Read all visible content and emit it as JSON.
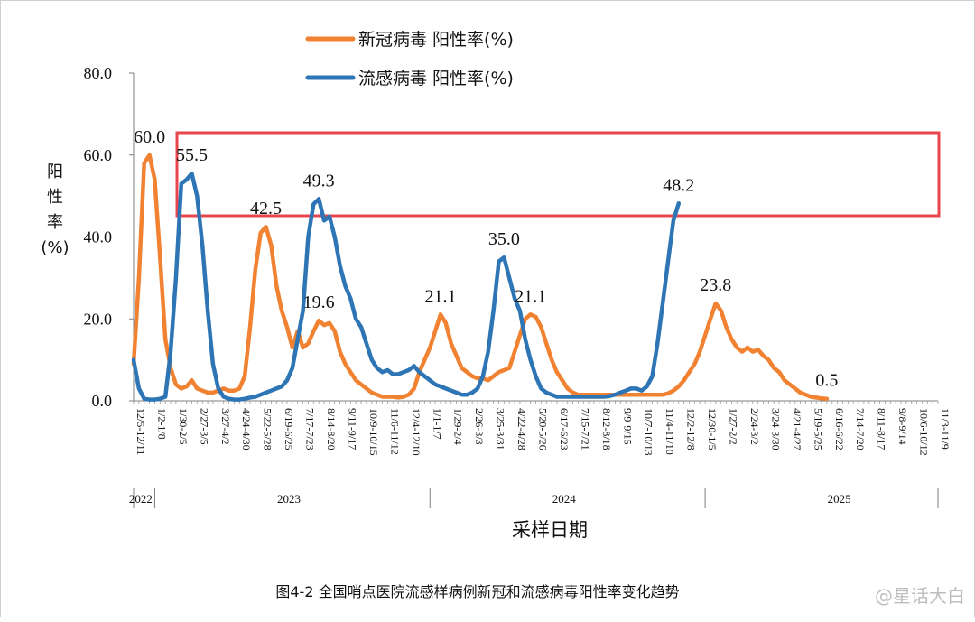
{
  "chart_data": {
    "type": "line",
    "ylabel_chars": [
      "阳",
      "性",
      "率",
      "(%)"
    ],
    "xlabel": "采样日期",
    "caption": "图4-2 全国哨点医院流感样病例新冠和流感病毒阳性率变化趋势",
    "ylim": [
      0,
      80
    ],
    "yticks": [
      {
        "value": 0,
        "label": "0.0"
      },
      {
        "value": 20,
        "label": "20.0"
      },
      {
        "value": 40,
        "label": "40.0"
      },
      {
        "value": 60,
        "label": "60.0"
      },
      {
        "value": 80,
        "label": "80.0"
      }
    ],
    "n_weeks": 152,
    "x_ticks": [
      {
        "i": 0,
        "label": "12/5-12/11"
      },
      {
        "i": 4,
        "label": "1/2-1/8"
      },
      {
        "i": 8,
        "label": "1/30-2/5"
      },
      {
        "i": 12,
        "label": "2/27-3/5"
      },
      {
        "i": 16,
        "label": "3/27-4/2"
      },
      {
        "i": 20,
        "label": "4/24-4/30"
      },
      {
        "i": 24,
        "label": "5/22-5/28"
      },
      {
        "i": 28,
        "label": "6/19-6/25"
      },
      {
        "i": 32,
        "label": "7/17-7/23"
      },
      {
        "i": 36,
        "label": "8/14-8/20"
      },
      {
        "i": 40,
        "label": "9/11-9/17"
      },
      {
        "i": 44,
        "label": "10/9-10/15"
      },
      {
        "i": 48,
        "label": "11/6-11/12"
      },
      {
        "i": 52,
        "label": "12/4-12/10"
      },
      {
        "i": 56,
        "label": "1/1-1/7"
      },
      {
        "i": 60,
        "label": "1/29-2/4"
      },
      {
        "i": 64,
        "label": "2/26-3/3"
      },
      {
        "i": 68,
        "label": "3/25-3/31"
      },
      {
        "i": 72,
        "label": "4/22-4/28"
      },
      {
        "i": 76,
        "label": "5/20-5/26"
      },
      {
        "i": 80,
        "label": "6/17-6/23"
      },
      {
        "i": 84,
        "label": "7/15-7/21"
      },
      {
        "i": 88,
        "label": "8/12-8/18"
      },
      {
        "i": 92,
        "label": "9/9-9/15"
      },
      {
        "i": 96,
        "label": "10/7-10/13"
      },
      {
        "i": 100,
        "label": "11/4-11/10"
      },
      {
        "i": 104,
        "label": "12/2-12/8"
      },
      {
        "i": 108,
        "label": "12/30-1/5"
      },
      {
        "i": 112,
        "label": "1/27-2/2"
      },
      {
        "i": 116,
        "label": "2/24-3/2"
      },
      {
        "i": 120,
        "label": "3/24-3/30"
      },
      {
        "i": 124,
        "label": "4/21-4/27"
      },
      {
        "i": 128,
        "label": "5/19-5/25"
      },
      {
        "i": 132,
        "label": "6/16-6/22"
      },
      {
        "i": 136,
        "label": "7/14-7/20"
      },
      {
        "i": 140,
        "label": "8/11-8/17"
      },
      {
        "i": 144,
        "label": "9/8-9/14"
      },
      {
        "i": 148,
        "label": "10/6-10/12"
      },
      {
        "i": 152,
        "label": "11/3-11/9"
      }
    ],
    "years": [
      {
        "label": "2022",
        "i_center": 1
      },
      {
        "label": "2023",
        "i_center": 29
      },
      {
        "label": "2024",
        "i_center": 81
      },
      {
        "label": "2025",
        "i_center": 133
      }
    ],
    "year_dividers": [
      4,
      56,
      108
    ],
    "series": [
      {
        "name": "新冠病毒 阳性率(%)",
        "color": "#F08232",
        "values": [
          [
            0,
            9
          ],
          [
            1,
            30
          ],
          [
            2,
            58
          ],
          [
            3,
            60
          ],
          [
            4,
            54
          ],
          [
            5,
            35
          ],
          [
            6,
            15
          ],
          [
            7,
            8
          ],
          [
            8,
            4
          ],
          [
            9,
            3
          ],
          [
            10,
            3.5
          ],
          [
            11,
            5
          ],
          [
            12,
            3
          ],
          [
            13,
            2.5
          ],
          [
            14,
            2
          ],
          [
            15,
            2
          ],
          [
            16,
            2.5
          ],
          [
            17,
            3
          ],
          [
            18,
            2.5
          ],
          [
            19,
            2.5
          ],
          [
            20,
            3
          ],
          [
            21,
            6
          ],
          [
            22,
            18
          ],
          [
            23,
            32
          ],
          [
            24,
            41
          ],
          [
            25,
            42.5
          ],
          [
            26,
            38
          ],
          [
            27,
            28
          ],
          [
            28,
            22
          ],
          [
            29,
            18
          ],
          [
            30,
            13
          ],
          [
            31,
            17
          ],
          [
            32,
            13
          ],
          [
            33,
            14
          ],
          [
            34,
            17
          ],
          [
            35,
            19.6
          ],
          [
            36,
            18.5
          ],
          [
            37,
            19
          ],
          [
            38,
            17
          ],
          [
            39,
            12
          ],
          [
            40,
            9
          ],
          [
            41,
            7
          ],
          [
            42,
            5
          ],
          [
            43,
            4
          ],
          [
            44,
            3
          ],
          [
            45,
            2
          ],
          [
            46,
            1.5
          ],
          [
            47,
            1
          ],
          [
            48,
            1
          ],
          [
            49,
            1
          ],
          [
            50,
            0.8
          ],
          [
            51,
            1
          ],
          [
            52,
            1.5
          ],
          [
            53,
            3
          ],
          [
            54,
            7
          ],
          [
            55,
            10
          ],
          [
            56,
            13
          ],
          [
            57,
            17
          ],
          [
            58,
            21.1
          ],
          [
            59,
            19
          ],
          [
            60,
            14
          ],
          [
            61,
            11
          ],
          [
            62,
            8
          ],
          [
            63,
            7
          ],
          [
            64,
            6
          ],
          [
            65,
            5.5
          ],
          [
            66,
            5.5
          ],
          [
            67,
            5
          ],
          [
            68,
            6
          ],
          [
            69,
            7
          ],
          [
            70,
            7.5
          ],
          [
            71,
            8
          ],
          [
            72,
            12
          ],
          [
            73,
            16
          ],
          [
            74,
            20
          ],
          [
            75,
            21.1
          ],
          [
            76,
            20.5
          ],
          [
            77,
            18
          ],
          [
            78,
            14
          ],
          [
            79,
            10
          ],
          [
            80,
            7
          ],
          [
            81,
            5
          ],
          [
            82,
            3
          ],
          [
            83,
            2
          ],
          [
            84,
            1.5
          ],
          [
            85,
            1.5
          ],
          [
            86,
            1.5
          ],
          [
            87,
            1.5
          ],
          [
            88,
            1.5
          ],
          [
            89,
            1.5
          ],
          [
            90,
            1.5
          ],
          [
            91,
            1.5
          ],
          [
            92,
            1.5
          ],
          [
            93,
            1.5
          ],
          [
            94,
            1.5
          ],
          [
            95,
            1.5
          ],
          [
            96,
            1.5
          ],
          [
            97,
            1.5
          ],
          [
            98,
            1.5
          ],
          [
            99,
            1.5
          ],
          [
            100,
            1.5
          ],
          [
            101,
            1.8
          ],
          [
            102,
            2.5
          ],
          [
            103,
            3.5
          ],
          [
            104,
            5
          ],
          [
            105,
            7
          ],
          [
            106,
            9
          ],
          [
            107,
            12
          ],
          [
            108,
            16
          ],
          [
            109,
            20
          ],
          [
            110,
            23.8
          ],
          [
            111,
            22
          ],
          [
            112,
            18
          ],
          [
            113,
            15
          ],
          [
            114,
            13
          ],
          [
            115,
            12
          ],
          [
            116,
            13
          ],
          [
            117,
            12
          ],
          [
            118,
            12.5
          ],
          [
            119,
            11
          ],
          [
            120,
            10
          ],
          [
            121,
            8
          ],
          [
            122,
            7
          ],
          [
            123,
            5
          ],
          [
            124,
            4
          ],
          [
            125,
            3
          ],
          [
            126,
            2
          ],
          [
            127,
            1.5
          ],
          [
            128,
            1
          ],
          [
            129,
            0.8
          ],
          [
            130,
            0.6
          ],
          [
            131,
            0.5
          ]
        ]
      },
      {
        "name": "流感病毒 阳性率(%)",
        "color": "#2E75B6",
        "values": [
          [
            0,
            10
          ],
          [
            1,
            3
          ],
          [
            2,
            0.5
          ],
          [
            3,
            0.3
          ],
          [
            4,
            0.3
          ],
          [
            5,
            0.5
          ],
          [
            6,
            1
          ],
          [
            7,
            12
          ],
          [
            8,
            30
          ],
          [
            9,
            53
          ],
          [
            10,
            54
          ],
          [
            11,
            55.5
          ],
          [
            12,
            50
          ],
          [
            13,
            38
          ],
          [
            14,
            22
          ],
          [
            15,
            9
          ],
          [
            16,
            3
          ],
          [
            17,
            1
          ],
          [
            18,
            0.5
          ],
          [
            19,
            0.3
          ],
          [
            20,
            0.3
          ],
          [
            21,
            0.5
          ],
          [
            22,
            0.8
          ],
          [
            23,
            1
          ],
          [
            24,
            1.5
          ],
          [
            25,
            2
          ],
          [
            26,
            2.5
          ],
          [
            27,
            3
          ],
          [
            28,
            3.5
          ],
          [
            29,
            5
          ],
          [
            30,
            8
          ],
          [
            31,
            15
          ],
          [
            32,
            22
          ],
          [
            33,
            40
          ],
          [
            34,
            48
          ],
          [
            35,
            49.3
          ],
          [
            36,
            44
          ],
          [
            37,
            45
          ],
          [
            38,
            40
          ],
          [
            39,
            33
          ],
          [
            40,
            28
          ],
          [
            41,
            25
          ],
          [
            42,
            20
          ],
          [
            43,
            18
          ],
          [
            44,
            14
          ],
          [
            45,
            10
          ],
          [
            46,
            8
          ],
          [
            47,
            7
          ],
          [
            48,
            7.5
          ],
          [
            49,
            6.5
          ],
          [
            50,
            6.5
          ],
          [
            51,
            7
          ],
          [
            52,
            7.5
          ],
          [
            53,
            8.5
          ],
          [
            54,
            7
          ],
          [
            55,
            6
          ],
          [
            56,
            5
          ],
          [
            57,
            4
          ],
          [
            58,
            3.5
          ],
          [
            59,
            3
          ],
          [
            60,
            2.5
          ],
          [
            61,
            2
          ],
          [
            62,
            1.5
          ],
          [
            63,
            1.5
          ],
          [
            64,
            2
          ],
          [
            65,
            3
          ],
          [
            66,
            6
          ],
          [
            67,
            12
          ],
          [
            68,
            22
          ],
          [
            69,
            34
          ],
          [
            70,
            35
          ],
          [
            71,
            30
          ],
          [
            72,
            25
          ],
          [
            73,
            22
          ],
          [
            74,
            15
          ],
          [
            75,
            10
          ],
          [
            76,
            6
          ],
          [
            77,
            3
          ],
          [
            78,
            2
          ],
          [
            79,
            1.5
          ],
          [
            80,
            1
          ],
          [
            81,
            1
          ],
          [
            82,
            1
          ],
          [
            83,
            1
          ],
          [
            84,
            1
          ],
          [
            85,
            1
          ],
          [
            86,
            1
          ],
          [
            87,
            1
          ],
          [
            88,
            1
          ],
          [
            89,
            1
          ],
          [
            90,
            1.2
          ],
          [
            91,
            1.5
          ],
          [
            92,
            2
          ],
          [
            93,
            2.5
          ],
          [
            94,
            3
          ],
          [
            95,
            3
          ],
          [
            96,
            2.5
          ],
          [
            97,
            3.5
          ],
          [
            98,
            6
          ],
          [
            99,
            14
          ],
          [
            100,
            24
          ],
          [
            101,
            34
          ],
          [
            102,
            44
          ],
          [
            103,
            48.2
          ]
        ]
      }
    ],
    "peak_labels": [
      {
        "series": 0,
        "i": 3,
        "y": 60,
        "label": "60.0"
      },
      {
        "series": 1,
        "i": 11,
        "y": 55.5,
        "label": "55.5"
      },
      {
        "series": 0,
        "i": 25,
        "y": 42.5,
        "label": "42.5"
      },
      {
        "series": 0,
        "i": 35,
        "y": 19.6,
        "label": "19.6"
      },
      {
        "series": 1,
        "i": 35,
        "y": 49.3,
        "label": "49.3"
      },
      {
        "series": 0,
        "i": 58,
        "y": 21.1,
        "label": "21.1"
      },
      {
        "series": 0,
        "i": 75,
        "y": 21.1,
        "label": "21.1"
      },
      {
        "series": 1,
        "i": 70,
        "y": 35,
        "label": "35.0"
      },
      {
        "series": 0,
        "i": 110,
        "y": 23.8,
        "label": "23.8"
      },
      {
        "series": 1,
        "i": 103,
        "y": 48.2,
        "label": "48.2"
      },
      {
        "series": 0,
        "i": 131,
        "y": 0.5,
        "label": "0.5"
      }
    ],
    "highlight_box": {
      "color": "#E8454D"
    },
    "watermark": "@星话大白"
  }
}
